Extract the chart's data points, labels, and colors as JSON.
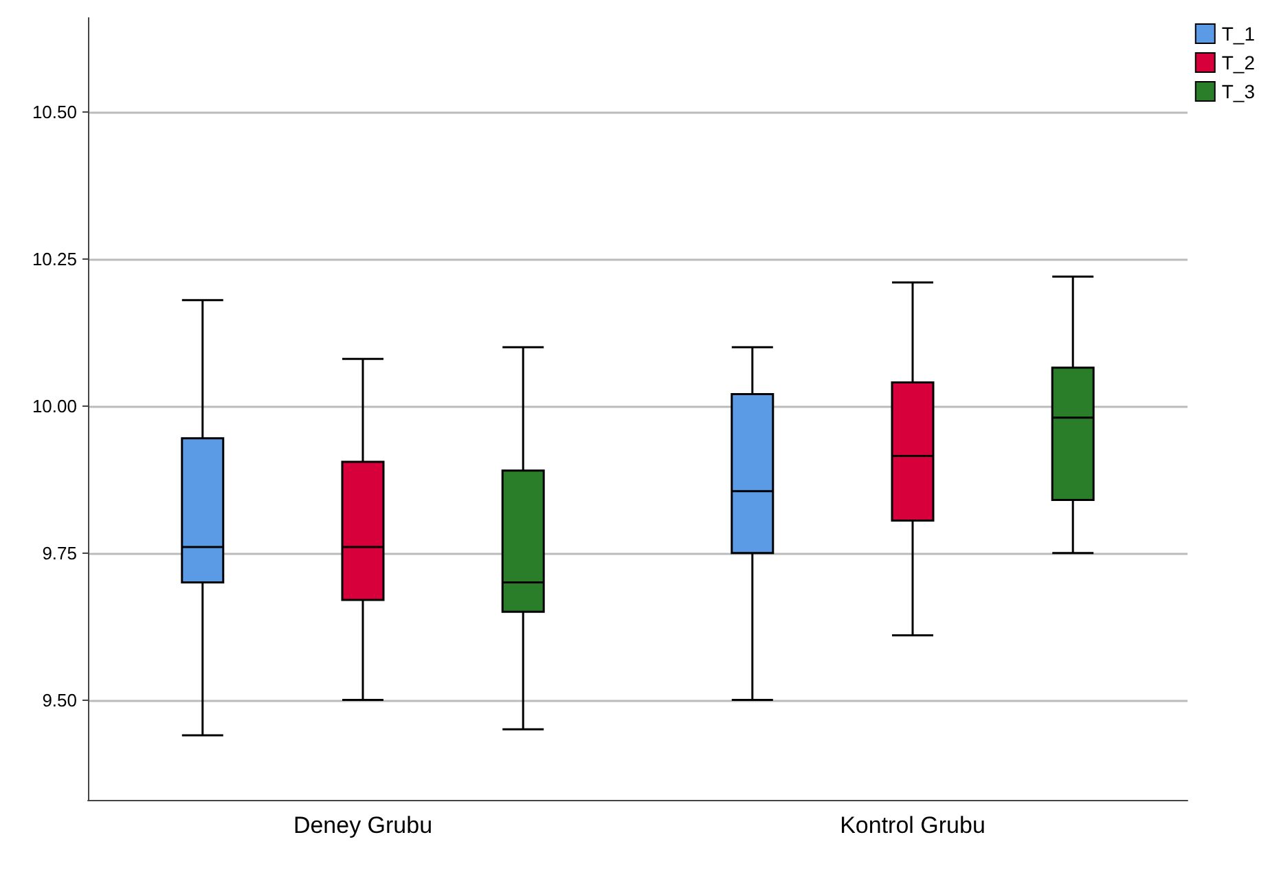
{
  "chart_data": {
    "type": "box",
    "categories": [
      "Deney Grubu",
      "Kontrol Grubu"
    ],
    "series": [
      {
        "name": "T_1",
        "color": "#5b9be6",
        "boxes": [
          {
            "low": 9.44,
            "q1": 9.7,
            "median": 9.76,
            "q3": 9.945,
            "high": 10.18
          },
          {
            "low": 9.5,
            "q1": 9.75,
            "median": 9.855,
            "q3": 10.02,
            "high": 10.1
          }
        ]
      },
      {
        "name": "T_2",
        "color": "#d7003a",
        "boxes": [
          {
            "low": 9.5,
            "q1": 9.67,
            "median": 9.76,
            "q3": 9.905,
            "high": 10.08
          },
          {
            "low": 9.61,
            "q1": 9.805,
            "median": 9.915,
            "q3": 10.04,
            "high": 10.21
          }
        ]
      },
      {
        "name": "T_3",
        "color": "#2a7e2a",
        "boxes": [
          {
            "low": 9.45,
            "q1": 9.65,
            "median": 9.7,
            "q3": 9.89,
            "high": 10.1
          },
          {
            "low": 9.75,
            "q1": 9.84,
            "median": 9.98,
            "q3": 10.065,
            "high": 10.22
          }
        ]
      }
    ],
    "ylim": [
      9.33,
      10.66
    ],
    "yticks": [
      {
        "value": 9.5,
        "label": "9.50"
      },
      {
        "value": 9.75,
        "label": "9.75"
      },
      {
        "value": 10,
        "label": "10.00"
      },
      {
        "value": 10.25,
        "label": "10.25"
      },
      {
        "value": 10.5,
        "label": "10.50"
      }
    ],
    "grid": "y",
    "legend": "top right"
  }
}
